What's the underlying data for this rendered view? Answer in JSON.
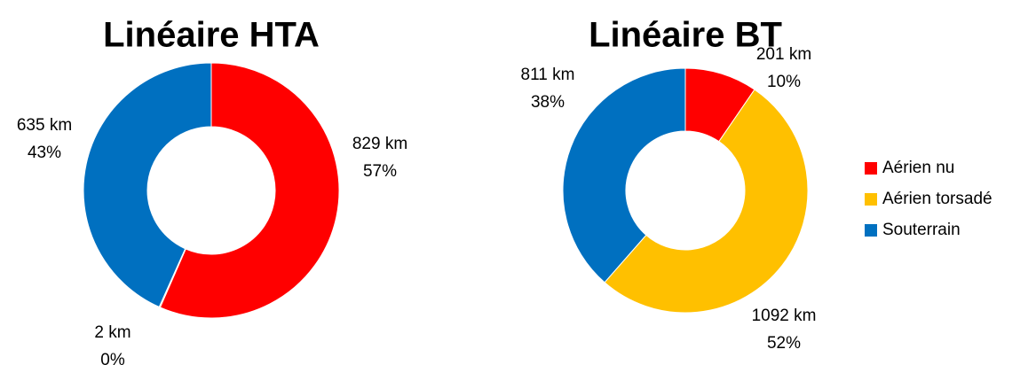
{
  "chart_data": [
    {
      "type": "donut",
      "title": "Linéaire HTA",
      "values": [
        829,
        2,
        635
      ],
      "value_labels": [
        "829 km",
        "2 km",
        "635 km"
      ],
      "percentages": [
        57,
        0,
        43
      ],
      "percentage_labels": [
        "57%",
        "0%",
        "43%"
      ]
    },
    {
      "type": "donut",
      "title": "Linéaire BT",
      "values": [
        201,
        1092,
        811
      ],
      "value_labels": [
        "201 km",
        "1092 km",
        "811 km"
      ],
      "percentages": [
        10,
        52,
        38
      ],
      "percentage_labels": [
        "10%",
        "52%",
        "38%"
      ]
    }
  ],
  "legend": {
    "categories": [
      "Aérien nu",
      "Aérien torsadé",
      "Souterrain"
    ],
    "colors": [
      "#ff0000",
      "#ffc000",
      "#0070c0"
    ]
  }
}
